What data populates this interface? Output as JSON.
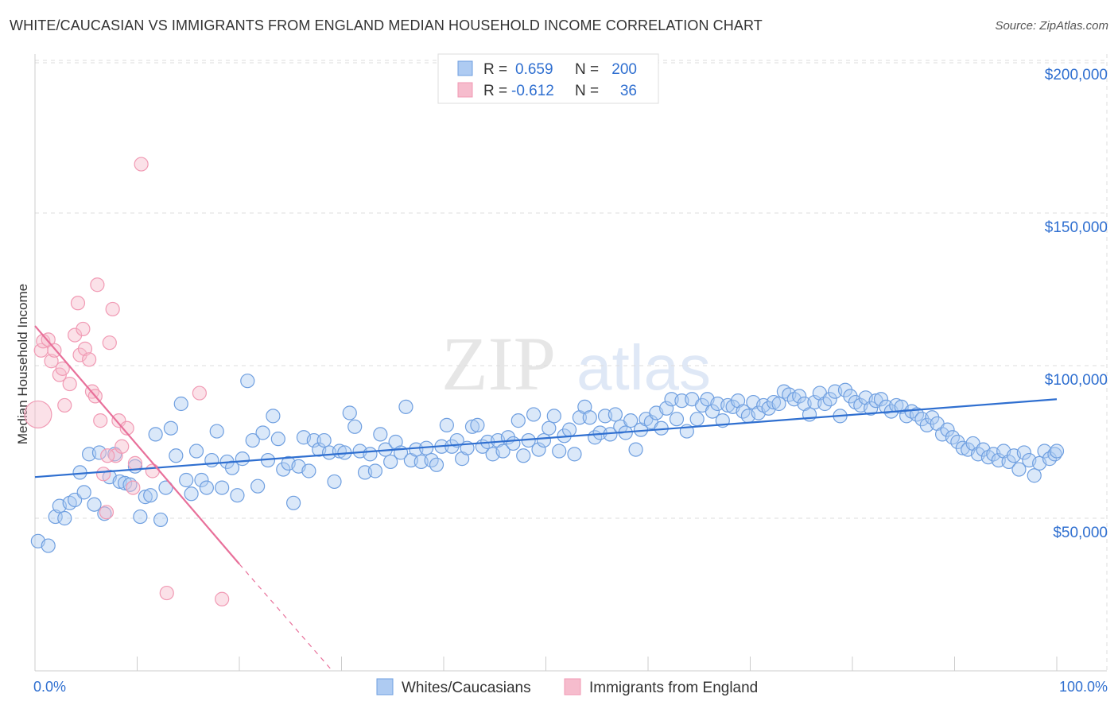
{
  "title": "WHITE/CAUCASIAN VS IMMIGRANTS FROM ENGLAND MEDIAN HOUSEHOLD INCOME CORRELATION CHART",
  "source": "Source: ZipAtlas.com",
  "watermark": {
    "zip": "ZIP",
    "atlas": "atlas"
  },
  "legend_box": {
    "rows": [
      {
        "r_label": "R =",
        "r_value": "0.659",
        "n_label": "N =",
        "n_value": "200",
        "color": "#aecbf2"
      },
      {
        "r_label": "R =",
        "r_value": "-0.612",
        "n_label": "N =",
        "n_value": "36",
        "color": "#f6bccd"
      }
    ]
  },
  "bottom_legend": [
    {
      "label": "Whites/Caucasians",
      "color": "#aecbf2"
    },
    {
      "label": "Immigrants from England",
      "color": "#f6bccd"
    }
  ],
  "chart_data": {
    "type": "scatter",
    "ylabel": "Median Household Income",
    "x_ticks": [
      "0.0%",
      "100.0%"
    ],
    "y_ticks": [
      "$50,000",
      "$100,000",
      "$150,000",
      "$200,000"
    ],
    "xlim": [
      0,
      100
    ],
    "ylim": [
      0,
      205000
    ],
    "grid": true,
    "series": [
      {
        "name": "Whites/Caucasians",
        "color": "#6f9fe0",
        "line_color": "#2f6fd0",
        "trend": [
          [
            0,
            63500
          ],
          [
            100,
            89000
          ]
        ],
        "points": [
          [
            0.3,
            42500
          ],
          [
            1.3,
            41000
          ],
          [
            2.0,
            50500
          ],
          [
            2.4,
            54000
          ],
          [
            2.9,
            50000
          ],
          [
            3.4,
            55000
          ],
          [
            3.9,
            56000
          ],
          [
            4.4,
            65000
          ],
          [
            4.8,
            58500
          ],
          [
            5.3,
            71000
          ],
          [
            5.8,
            54500
          ],
          [
            6.3,
            71500
          ],
          [
            6.8,
            51500
          ],
          [
            7.3,
            63500
          ],
          [
            7.8,
            71000
          ],
          [
            8.3,
            62000
          ],
          [
            8.8,
            61500
          ],
          [
            9.3,
            61000
          ],
          [
            9.8,
            67000
          ],
          [
            10.3,
            50500
          ],
          [
            10.8,
            57000
          ],
          [
            11.3,
            57500
          ],
          [
            11.8,
            77500
          ],
          [
            12.3,
            49500
          ],
          [
            12.8,
            60000
          ],
          [
            13.3,
            79500
          ],
          [
            13.8,
            70500
          ],
          [
            14.3,
            87500
          ],
          [
            14.8,
            62500
          ],
          [
            15.3,
            58000
          ],
          [
            15.8,
            72000
          ],
          [
            16.3,
            62500
          ],
          [
            16.8,
            60000
          ],
          [
            17.3,
            69000
          ],
          [
            17.8,
            78500
          ],
          [
            18.3,
            60000
          ],
          [
            18.8,
            68500
          ],
          [
            19.3,
            66500
          ],
          [
            19.8,
            57500
          ],
          [
            20.3,
            69500
          ],
          [
            20.8,
            95000
          ],
          [
            21.3,
            75500
          ],
          [
            21.8,
            60500
          ],
          [
            22.3,
            78000
          ],
          [
            22.8,
            69000
          ],
          [
            23.3,
            83500
          ],
          [
            23.8,
            76000
          ],
          [
            24.3,
            66000
          ],
          [
            24.8,
            68000
          ],
          [
            25.3,
            55000
          ],
          [
            25.8,
            67000
          ],
          [
            26.3,
            76500
          ],
          [
            26.8,
            65500
          ],
          [
            27.3,
            75500
          ],
          [
            27.8,
            72500
          ],
          [
            28.3,
            75500
          ],
          [
            28.8,
            71500
          ],
          [
            29.3,
            62000
          ],
          [
            29.8,
            72000
          ],
          [
            30.3,
            71500
          ],
          [
            30.8,
            84500
          ],
          [
            31.3,
            80000
          ],
          [
            31.8,
            72000
          ],
          [
            32.3,
            65000
          ],
          [
            32.8,
            71000
          ],
          [
            33.3,
            65500
          ],
          [
            33.8,
            77500
          ],
          [
            34.3,
            72500
          ],
          [
            34.8,
            68500
          ],
          [
            35.3,
            75000
          ],
          [
            35.8,
            71500
          ],
          [
            36.3,
            86500
          ],
          [
            36.8,
            69000
          ],
          [
            37.3,
            72500
          ],
          [
            37.8,
            68500
          ],
          [
            38.3,
            73000
          ],
          [
            38.8,
            69000
          ],
          [
            39.3,
            67500
          ],
          [
            39.8,
            73500
          ],
          [
            40.3,
            80500
          ],
          [
            40.8,
            73500
          ],
          [
            41.3,
            75500
          ],
          [
            41.8,
            69500
          ],
          [
            42.3,
            73000
          ],
          [
            42.8,
            80000
          ],
          [
            43.3,
            80500
          ],
          [
            43.8,
            73500
          ],
          [
            44.3,
            75000
          ],
          [
            44.8,
            71000
          ],
          [
            45.3,
            75500
          ],
          [
            45.8,
            72000
          ],
          [
            46.3,
            76500
          ],
          [
            46.8,
            74500
          ],
          [
            47.3,
            82000
          ],
          [
            47.8,
            70500
          ],
          [
            48.3,
            75500
          ],
          [
            48.8,
            84000
          ],
          [
            49.3,
            72500
          ],
          [
            49.8,
            75500
          ],
          [
            50.3,
            79500
          ],
          [
            50.8,
            83500
          ],
          [
            51.3,
            72000
          ],
          [
            51.8,
            77000
          ],
          [
            52.3,
            79000
          ],
          [
            52.8,
            71000
          ],
          [
            53.3,
            83000
          ],
          [
            53.8,
            86500
          ],
          [
            54.3,
            83000
          ],
          [
            54.8,
            76500
          ],
          [
            55.3,
            78000
          ],
          [
            55.8,
            83500
          ],
          [
            56.3,
            77500
          ],
          [
            56.8,
            84000
          ],
          [
            57.3,
            80000
          ],
          [
            57.8,
            78000
          ],
          [
            58.3,
            82000
          ],
          [
            58.8,
            72500
          ],
          [
            59.3,
            79000
          ],
          [
            59.8,
            82500
          ],
          [
            60.3,
            81500
          ],
          [
            60.8,
            84500
          ],
          [
            61.3,
            79500
          ],
          [
            61.8,
            86000
          ],
          [
            62.3,
            89000
          ],
          [
            62.8,
            82500
          ],
          [
            63.3,
            88500
          ],
          [
            63.8,
            78500
          ],
          [
            64.3,
            89000
          ],
          [
            64.8,
            82500
          ],
          [
            65.3,
            87000
          ],
          [
            65.8,
            89000
          ],
          [
            66.3,
            85000
          ],
          [
            66.8,
            87500
          ],
          [
            67.3,
            82000
          ],
          [
            67.8,
            87000
          ],
          [
            68.3,
            86500
          ],
          [
            68.8,
            88500
          ],
          [
            69.3,
            85000
          ],
          [
            69.8,
            83500
          ],
          [
            70.3,
            88000
          ],
          [
            70.8,
            84500
          ],
          [
            71.3,
            87000
          ],
          [
            71.8,
            86000
          ],
          [
            72.3,
            88000
          ],
          [
            72.8,
            87500
          ],
          [
            73.3,
            91500
          ],
          [
            73.8,
            90500
          ],
          [
            74.3,
            89000
          ],
          [
            74.8,
            90000
          ],
          [
            75.3,
            87500
          ],
          [
            75.8,
            84000
          ],
          [
            76.3,
            88000
          ],
          [
            76.8,
            91000
          ],
          [
            77.3,
            87500
          ],
          [
            77.8,
            89000
          ],
          [
            78.3,
            91500
          ],
          [
            78.8,
            83500
          ],
          [
            79.3,
            92000
          ],
          [
            79.8,
            90000
          ],
          [
            80.3,
            88000
          ],
          [
            80.8,
            87000
          ],
          [
            81.3,
            89500
          ],
          [
            81.8,
            86000
          ],
          [
            82.3,
            88500
          ],
          [
            82.8,
            89000
          ],
          [
            83.3,
            86500
          ],
          [
            83.8,
            85000
          ],
          [
            84.3,
            87000
          ],
          [
            84.8,
            86500
          ],
          [
            85.3,
            83500
          ],
          [
            85.8,
            85000
          ],
          [
            86.3,
            84000
          ],
          [
            86.8,
            82500
          ],
          [
            87.3,
            80500
          ],
          [
            87.8,
            83000
          ],
          [
            88.3,
            81000
          ],
          [
            88.8,
            77500
          ],
          [
            89.3,
            79000
          ],
          [
            89.8,
            76500
          ],
          [
            90.3,
            75000
          ],
          [
            90.8,
            73000
          ],
          [
            91.3,
            72500
          ],
          [
            91.8,
            74500
          ],
          [
            92.3,
            71000
          ],
          [
            92.8,
            72500
          ],
          [
            93.3,
            70000
          ],
          [
            93.8,
            71000
          ],
          [
            94.3,
            69000
          ],
          [
            94.8,
            72000
          ],
          [
            95.3,
            68500
          ],
          [
            95.8,
            70500
          ],
          [
            96.3,
            66000
          ],
          [
            96.8,
            71500
          ],
          [
            97.3,
            69000
          ],
          [
            97.8,
            64000
          ],
          [
            98.3,
            68000
          ],
          [
            98.8,
            72000
          ],
          [
            99.3,
            69500
          ],
          [
            99.8,
            71000
          ],
          [
            100.0,
            72000
          ]
        ]
      },
      {
        "name": "Immigrants from England",
        "color": "#f19ab4",
        "line_color": "#e8709a",
        "trend_solid": [
          [
            0,
            113000
          ],
          [
            20,
            35000
          ]
        ],
        "trend_dashed": [
          [
            20,
            35000
          ],
          [
            33,
            -15000
          ]
        ],
        "points": [
          [
            0.3,
            84000
          ],
          [
            0.6,
            105000
          ],
          [
            0.8,
            108000
          ],
          [
            1.3,
            108500
          ],
          [
            1.6,
            101500
          ],
          [
            1.9,
            105000
          ],
          [
            2.4,
            97000
          ],
          [
            2.7,
            99000
          ],
          [
            2.9,
            87000
          ],
          [
            3.4,
            94000
          ],
          [
            3.9,
            110000
          ],
          [
            4.2,
            120500
          ],
          [
            4.4,
            103500
          ],
          [
            4.7,
            112000
          ],
          [
            4.9,
            105500
          ],
          [
            5.3,
            102000
          ],
          [
            5.6,
            91500
          ],
          [
            5.9,
            90000
          ],
          [
            6.1,
            126500
          ],
          [
            6.4,
            82000
          ],
          [
            6.7,
            64500
          ],
          [
            7.0,
            52000
          ],
          [
            7.3,
            107500
          ],
          [
            7.6,
            118500
          ],
          [
            7.9,
            70500
          ],
          [
            8.2,
            82000
          ],
          [
            8.5,
            73500
          ],
          [
            9.0,
            79500
          ],
          [
            9.6,
            60000
          ],
          [
            9.8,
            68000
          ],
          [
            10.4,
            166000
          ],
          [
            11.5,
            65500
          ],
          [
            12.9,
            25500
          ],
          [
            16.1,
            91000
          ],
          [
            18.3,
            23500
          ],
          [
            7.1,
            70500
          ]
        ]
      }
    ]
  }
}
